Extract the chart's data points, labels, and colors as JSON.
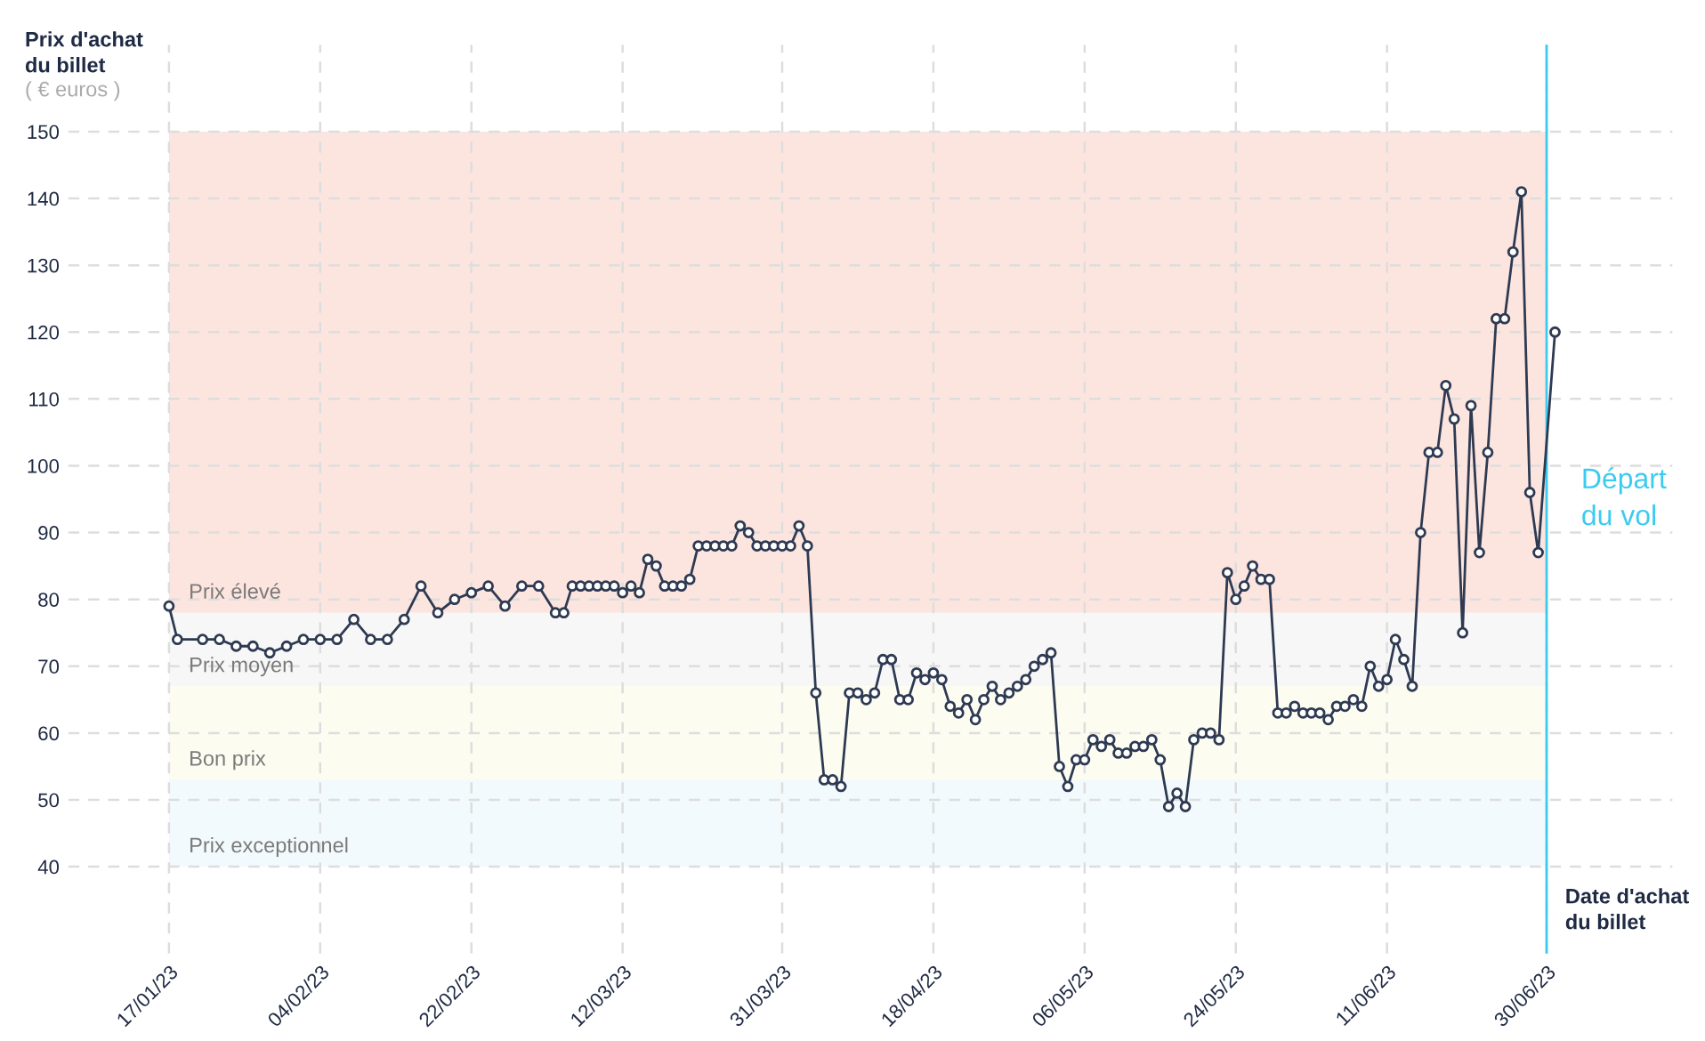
{
  "chart_data": {
    "type": "line",
    "xlabel": "Date d'achat\ndu billet",
    "ylabel": "Prix d'achat\ndu billet",
    "annotations": [
      "( € euros )"
    ],
    "x": [
      "2023-01-17",
      "2023-01-18",
      "2023-01-21",
      "2023-01-23",
      "2023-01-25",
      "2023-01-27",
      "2023-01-29",
      "2023-01-31",
      "2023-02-02",
      "2023-02-04",
      "2023-02-06",
      "2023-02-08",
      "2023-02-10",
      "2023-02-12",
      "2023-02-14",
      "2023-02-16",
      "2023-02-18",
      "2023-02-20",
      "2023-02-22",
      "2023-02-24",
      "2023-02-26",
      "2023-02-28",
      "2023-03-02",
      "2023-03-04",
      "2023-03-05",
      "2023-03-06",
      "2023-03-07",
      "2023-03-08",
      "2023-03-09",
      "2023-03-10",
      "2023-03-11",
      "2023-03-12",
      "2023-03-13",
      "2023-03-14",
      "2023-03-15",
      "2023-03-16",
      "2023-03-17",
      "2023-03-18",
      "2023-03-19",
      "2023-03-20",
      "2023-03-21",
      "2023-03-22",
      "2023-03-23",
      "2023-03-24",
      "2023-03-25",
      "2023-03-26",
      "2023-03-27",
      "2023-03-28",
      "2023-03-29",
      "2023-03-30",
      "2023-03-31",
      "2023-04-01",
      "2023-04-02",
      "2023-04-03",
      "2023-04-04",
      "2023-04-05",
      "2023-04-06",
      "2023-04-07",
      "2023-04-08",
      "2023-04-09",
      "2023-04-10",
      "2023-04-11",
      "2023-04-12",
      "2023-04-13",
      "2023-04-14",
      "2023-04-15",
      "2023-04-16",
      "2023-04-17",
      "2023-04-18",
      "2023-04-19",
      "2023-04-20",
      "2023-04-21",
      "2023-04-22",
      "2023-04-23",
      "2023-04-24",
      "2023-04-25",
      "2023-04-26",
      "2023-04-27",
      "2023-04-28",
      "2023-04-29",
      "2023-04-30",
      "2023-05-01",
      "2023-05-02",
      "2023-05-03",
      "2023-05-04",
      "2023-05-05",
      "2023-05-06",
      "2023-05-07",
      "2023-05-08",
      "2023-05-09",
      "2023-05-10",
      "2023-05-11",
      "2023-05-12",
      "2023-05-13",
      "2023-05-14",
      "2023-05-15",
      "2023-05-16",
      "2023-05-17",
      "2023-05-18",
      "2023-05-19",
      "2023-05-20",
      "2023-05-21",
      "2023-05-22",
      "2023-05-23",
      "2023-05-24",
      "2023-05-25",
      "2023-05-26",
      "2023-05-27",
      "2023-05-28",
      "2023-05-29",
      "2023-05-30",
      "2023-05-31",
      "2023-06-01",
      "2023-06-02",
      "2023-06-03",
      "2023-06-04",
      "2023-06-05",
      "2023-06-06",
      "2023-06-07",
      "2023-06-08",
      "2023-06-09",
      "2023-06-10",
      "2023-06-11",
      "2023-06-12",
      "2023-06-13",
      "2023-06-14",
      "2023-06-15",
      "2023-06-16",
      "2023-06-17",
      "2023-06-18",
      "2023-06-19",
      "2023-06-20",
      "2023-06-21",
      "2023-06-22",
      "2023-06-23",
      "2023-06-24",
      "2023-06-25",
      "2023-06-26",
      "2023-06-27",
      "2023-06-28",
      "2023-06-29",
      "2023-07-01"
    ],
    "series": [
      {
        "color": "#2e3a52",
        "values": [
          79,
          74,
          74,
          74,
          73,
          73,
          72,
          73,
          74,
          74,
          74,
          77,
          74,
          74,
          77,
          82,
          78,
          80,
          81,
          82,
          79,
          82,
          82,
          78,
          78,
          82,
          82,
          82,
          82,
          82,
          82,
          81,
          82,
          81,
          86,
          85,
          82,
          82,
          82,
          83,
          88,
          88,
          88,
          88,
          88,
          91,
          90,
          88,
          88,
          88,
          88,
          88,
          91,
          88,
          66,
          53,
          53,
          52,
          66,
          66,
          65,
          66,
          71,
          71,
          65,
          65,
          69,
          68,
          69,
          68,
          64,
          63,
          65,
          62,
          65,
          67,
          65,
          66,
          67,
          68,
          70,
          71,
          72,
          55,
          52,
          56,
          56,
          59,
          58,
          59,
          57,
          57,
          58,
          58,
          59,
          56,
          49,
          51,
          49,
          59,
          60,
          60,
          59,
          84,
          80,
          82,
          85,
          83,
          83,
          63,
          63,
          64,
          63,
          63,
          63,
          62,
          64,
          64,
          65,
          64,
          70,
          67,
          68,
          74,
          71,
          67,
          90,
          102,
          102,
          112,
          107,
          75,
          109,
          87,
          102,
          122,
          122,
          132,
          141,
          96,
          87,
          120
        ]
      }
    ],
    "marker": "circle",
    "line_style": "solid",
    "grid": true,
    "xlim": [
      "2023-01-05",
      "2023-07-15"
    ],
    "ylim": [
      27,
      163
    ],
    "yticks": [
      40,
      50,
      60,
      70,
      80,
      90,
      100,
      110,
      120,
      130,
      140,
      150
    ],
    "xticks": [
      {
        "value": "2023-01-17",
        "label": "17/01/23"
      },
      {
        "value": "2023-02-04",
        "label": "04/02/23"
      },
      {
        "value": "2023-02-22",
        "label": "22/02/23"
      },
      {
        "value": "2023-03-12",
        "label": "12/03/23"
      },
      {
        "value": "2023-03-31",
        "label": "31/03/23"
      },
      {
        "value": "2023-04-18",
        "label": "18/04/23"
      },
      {
        "value": "2023-05-06",
        "label": "06/05/23"
      },
      {
        "value": "2023-05-24",
        "label": "24/05/23"
      },
      {
        "value": "2023-06-11",
        "label": "11/06/23"
      },
      {
        "value": "2023-06-30",
        "label": "30/06/23"
      }
    ],
    "bands": [
      {
        "axis": "y",
        "from": 78,
        "to": 150,
        "label": "Prix élevé",
        "color": "#fde5df"
      },
      {
        "axis": "y",
        "from": 67,
        "to": 78,
        "label": "Prix moyen",
        "color": "#f7f7f7"
      },
      {
        "axis": "y",
        "from": 53,
        "to": 67,
        "label": "Bon prix",
        "color": "#fcfcf1"
      },
      {
        "axis": "y",
        "from": 40,
        "to": 53,
        "label": "Prix exceptionnel",
        "color": "#f3fafd"
      }
    ],
    "ref_lines": [
      {
        "axis": "x",
        "value": "2023-06-30",
        "label": "Départ\ndu vol",
        "color": "#3ccbf0"
      }
    ]
  }
}
